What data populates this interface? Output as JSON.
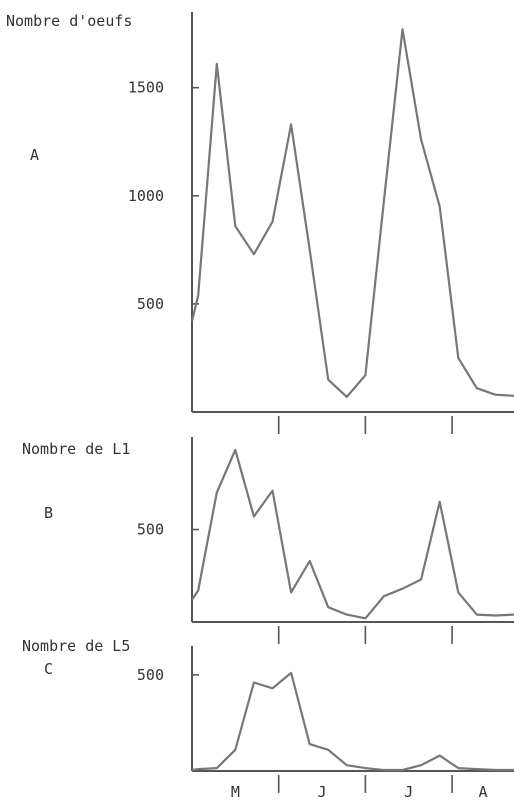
{
  "chart_data": [
    {
      "type": "line",
      "panel_letter": "A",
      "ylabel": "Nombre d'oeufs",
      "ylim": [
        0,
        1850
      ],
      "yticks": [
        500,
        1000,
        1500
      ],
      "x": [
        0,
        0.5,
        2,
        3.5,
        5,
        6.5,
        8,
        9.5,
        11,
        12.5,
        14,
        15.5,
        17,
        18.5,
        20,
        21.5,
        23,
        24.5,
        26
      ],
      "values": [
        420,
        540,
        1610,
        860,
        730,
        880,
        1330,
        750,
        150,
        70,
        170,
        980,
        1770,
        1260,
        950,
        250,
        110,
        80,
        75
      ]
    },
    {
      "type": "line",
      "panel_letter": "B",
      "ylabel": "Nombre de L1",
      "ylim": [
        0,
        1000
      ],
      "yticks": [
        500
      ],
      "x": [
        0,
        0.5,
        2,
        3.5,
        5,
        6.5,
        8,
        9.5,
        11,
        12.5,
        14,
        15.5,
        17,
        18.5,
        20,
        21.5,
        23,
        24.5,
        26
      ],
      "values": [
        120,
        170,
        700,
        930,
        570,
        710,
        160,
        330,
        80,
        40,
        20,
        140,
        180,
        230,
        650,
        160,
        40,
        35,
        40
      ]
    },
    {
      "type": "line",
      "panel_letter": "C",
      "ylabel": "Nombre de L5",
      "ylim": [
        0,
        650
      ],
      "yticks": [
        500
      ],
      "x": [
        0,
        0.5,
        2,
        3.5,
        5,
        6.5,
        8,
        9.5,
        11,
        12.5,
        14,
        15.5,
        17,
        18.5,
        20,
        21.5,
        23,
        24.5,
        26
      ],
      "values": [
        5,
        10,
        15,
        110,
        460,
        430,
        510,
        140,
        110,
        30,
        15,
        5,
        5,
        30,
        80,
        15,
        10,
        5,
        5
      ]
    }
  ],
  "x_axis": {
    "months": [
      "M",
      "J",
      "J",
      "A"
    ],
    "month_boundaries": [
      7,
      14,
      21
    ]
  }
}
